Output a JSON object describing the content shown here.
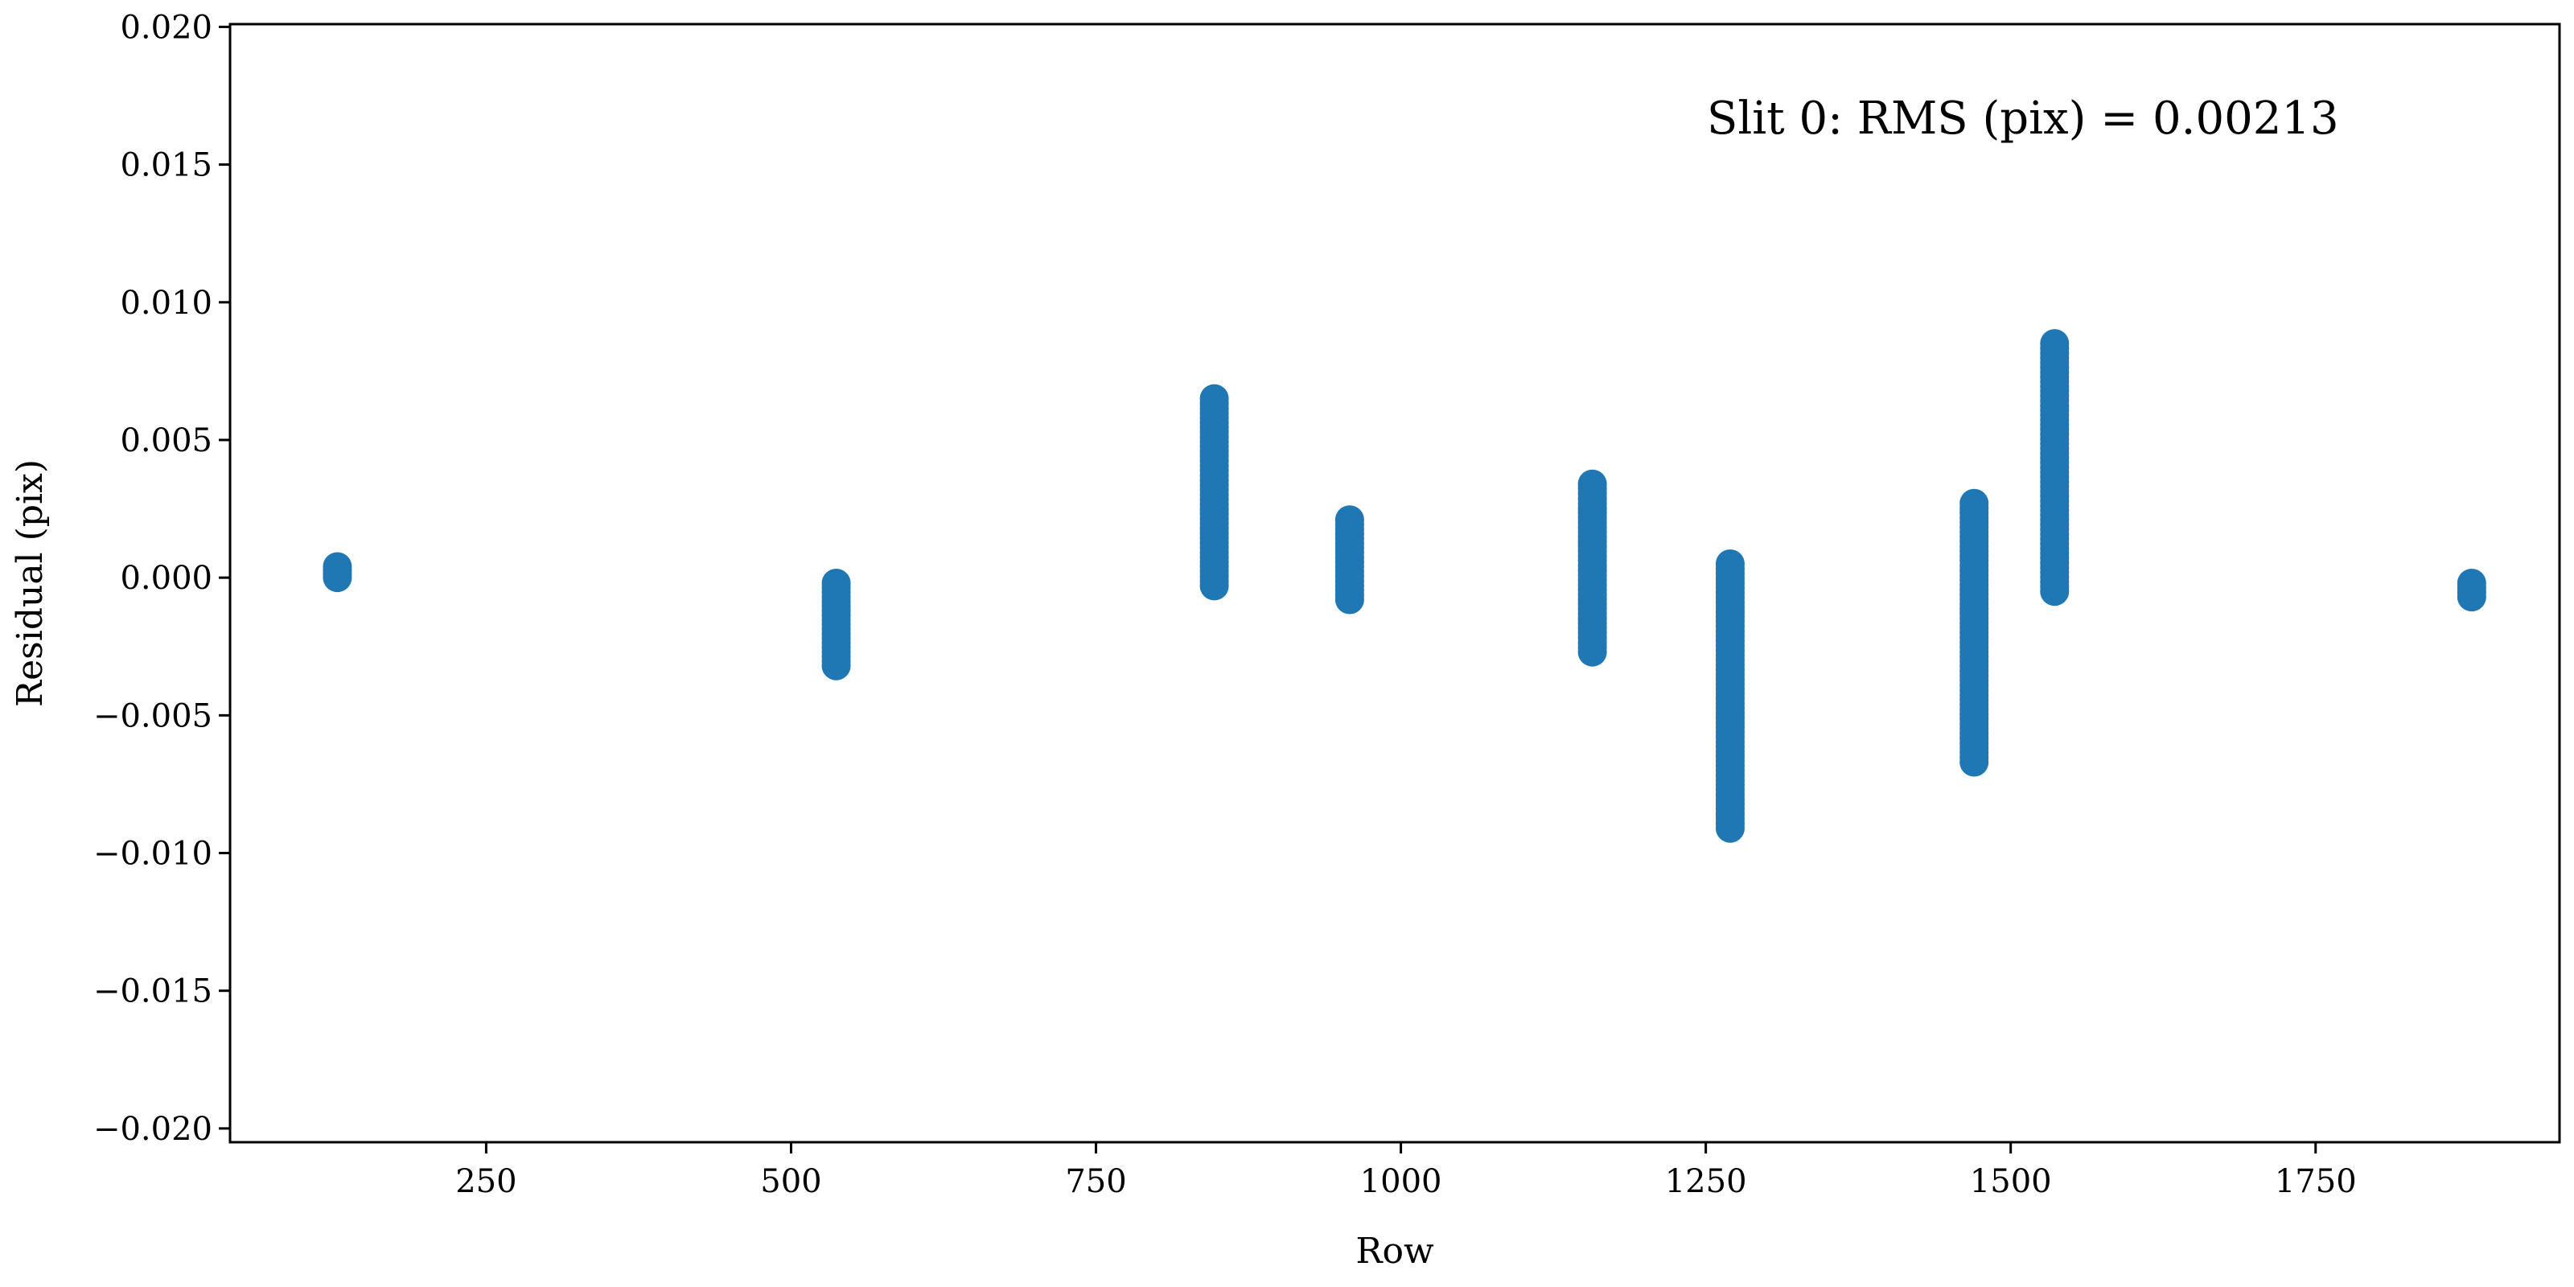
{
  "chart_data": {
    "type": "scatter",
    "title": "",
    "xlabel": "Row",
    "ylabel": "Residual (pix)",
    "annotation": "Slit 0:  RMS (pix) = 0.00213",
    "xlim": [
      40,
      1950
    ],
    "ylim": [
      -0.0205,
      0.0201
    ],
    "xticks": [
      250,
      500,
      750,
      1000,
      1250,
      1500,
      1750
    ],
    "xtick_labels": [
      "250",
      "500",
      "750",
      "1000",
      "1250",
      "1500",
      "1750"
    ],
    "yticks": [
      0.02,
      0.015,
      0.01,
      0.005,
      0.0,
      -0.005,
      -0.01,
      -0.015,
      -0.02
    ],
    "ytick_labels": [
      "0.020",
      "0.015",
      "0.010",
      "0.005",
      "0.000",
      "−0.005",
      "−0.010",
      "−0.015",
      "−0.020"
    ],
    "grid": false,
    "color": "#1f77b4",
    "clusters": [
      {
        "x": 128,
        "y_min": 0.0,
        "y_max": 0.0004
      },
      {
        "x": 537,
        "y_min": -0.0032,
        "y_max": -0.0002
      },
      {
        "x": 847,
        "y_min": -0.0003,
        "y_max": 0.0065
      },
      {
        "x": 958,
        "y_min": -0.0008,
        "y_max": 0.0021
      },
      {
        "x": 1157,
        "y_min": -0.0027,
        "y_max": 0.0034
      },
      {
        "x": 1270,
        "y_min": -0.0091,
        "y_max": 0.0005
      },
      {
        "x": 1470,
        "y_min": -0.0067,
        "y_max": 0.0027
      },
      {
        "x": 1536,
        "y_min": -0.0005,
        "y_max": 0.0085
      },
      {
        "x": 1878,
        "y_min": -0.0007,
        "y_max": -0.0002
      }
    ]
  }
}
